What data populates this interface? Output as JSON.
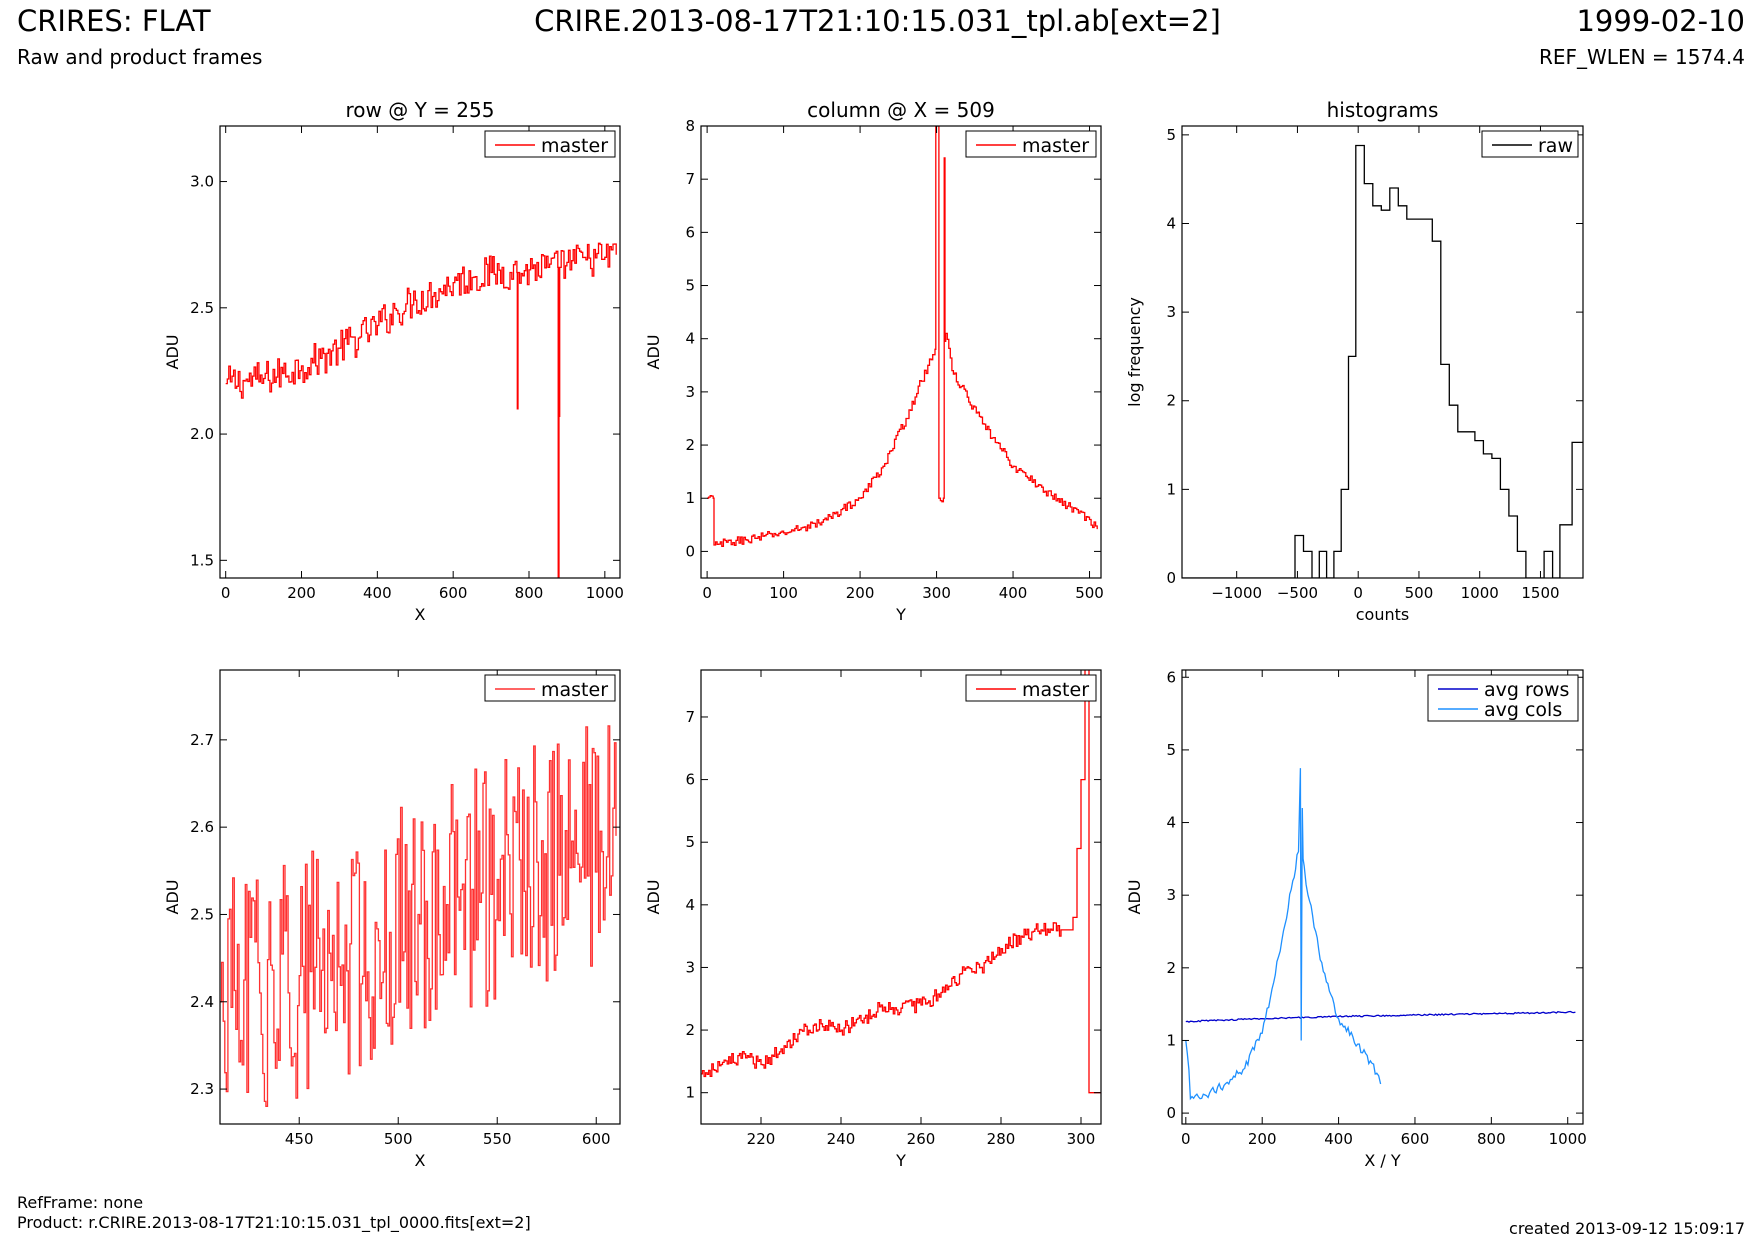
{
  "header": {
    "title_left": "CRIRES: FLAT",
    "title_center": "CRIRE.2013-08-17T21:10:15.031_tpl.ab[ext=2]",
    "title_right": "1999-02-10",
    "subtitle_left": "Raw and product frames",
    "subtitle_right": "REF_WLEN = 1574.4"
  },
  "footer": {
    "refframe": "RefFrame: none",
    "product": "Product: r.CRIRE.2013-08-17T21:10:15.031_tpl_0000.fits[ext=2]",
    "created": "created 2013-09-12 15:09:17"
  },
  "colors": {
    "master": "#ff0000",
    "raw": "#000000",
    "avg_rows": "#0000cc",
    "avg_cols": "#1e90ff"
  },
  "chart_data": [
    {
      "type": "line",
      "title": "row @ Y = 255",
      "xlabel": "X",
      "ylabel": "ADU",
      "xlim": [
        -15,
        1040
      ],
      "ylim": [
        1.43,
        3.22
      ],
      "xticks": [
        0,
        200,
        400,
        600,
        800,
        1000
      ],
      "yticks": [
        1.5,
        2.0,
        2.5,
        3.0
      ],
      "ytick_decimals": 1,
      "legend": "top-right",
      "series": [
        {
          "name": "master",
          "color": "#ff0000",
          "step": true,
          "x": [
            0,
            50,
            100,
            150,
            200,
            250,
            300,
            350,
            400,
            450,
            500,
            550,
            600,
            650,
            700,
            750,
            768,
            769,
            770,
            771,
            800,
            850,
            876,
            877,
            878,
            879,
            880,
            881,
            900,
            950,
            1000,
            1030
          ],
          "y": [
            2.2,
            2.21,
            2.22,
            2.24,
            2.27,
            2.3,
            2.34,
            2.38,
            2.43,
            2.49,
            2.53,
            2.56,
            2.6,
            2.62,
            2.64,
            2.64,
            2.64,
            2.1,
            2.1,
            2.64,
            2.65,
            2.66,
            2.66,
            1.43,
            1.43,
            2.66,
            2.07,
            2.66,
            2.68,
            2.69,
            2.7,
            2.71
          ],
          "noise": 0.07
        }
      ]
    },
    {
      "type": "line",
      "title": "column @ X = 509",
      "xlabel": "Y",
      "ylabel": "ADU",
      "xlim": [
        -8,
        515
      ],
      "ylim": [
        -0.5,
        8
      ],
      "xticks": [
        0,
        100,
        200,
        300,
        400,
        500
      ],
      "yticks": [
        0,
        1,
        2,
        3,
        4,
        5,
        6,
        7,
        8
      ],
      "ytick_decimals": 0,
      "legend": "top-right",
      "series": [
        {
          "name": "master",
          "color": "#ff0000",
          "step": true,
          "x": [
            0,
            8,
            9,
            50,
            100,
            150,
            200,
            230,
            260,
            280,
            295,
            298,
            299,
            302,
            303,
            309,
            310,
            311,
            312,
            320,
            340,
            360,
            400,
            450,
            500,
            510
          ],
          "y": [
            1.0,
            1.0,
            0.12,
            0.22,
            0.35,
            0.55,
            1.0,
            1.6,
            2.5,
            3.2,
            3.7,
            3.8,
            8.0,
            8.0,
            1.0,
            1.0,
            7.4,
            3.95,
            4.1,
            3.4,
            2.9,
            2.4,
            1.6,
            1.05,
            0.6,
            0.42
          ],
          "noise": 0.08
        }
      ]
    },
    {
      "type": "line",
      "title": "histograms",
      "xlabel": "counts",
      "ylabel": "log frequency",
      "xlim": [
        -1450,
        1850
      ],
      "ylim": [
        0,
        5.1
      ],
      "xticks": [
        -1000,
        -500,
        0,
        500,
        1000,
        1500
      ],
      "yticks": [
        0,
        1,
        2,
        3,
        4,
        5
      ],
      "ytick_decimals": 0,
      "legend": "top-right",
      "series": [
        {
          "name": "raw",
          "color": "#000000",
          "step": true,
          "x": [
            -1450,
            -580,
            -520,
            -450,
            -380,
            -320,
            -260,
            -200,
            -140,
            -80,
            -20,
            50,
            120,
            190,
            260,
            330,
            400,
            470,
            540,
            610,
            680,
            750,
            820,
            890,
            960,
            1030,
            1100,
            1170,
            1240,
            1310,
            1380,
            1450,
            1530,
            1600,
            1660,
            1760,
            1850
          ],
          "y": [
            0,
            0,
            0.48,
            0.3,
            0,
            0.3,
            0,
            0.3,
            1.0,
            2.5,
            4.88,
            4.45,
            4.2,
            4.15,
            4.4,
            4.2,
            4.05,
            4.05,
            4.05,
            3.8,
            2.41,
            1.95,
            1.65,
            1.65,
            1.55,
            1.4,
            1.35,
            1.0,
            0.7,
            0.3,
            0,
            0,
            0.3,
            0,
            0.6,
            1.53,
            1.53
          ]
        }
      ]
    },
    {
      "type": "line",
      "title": "",
      "xlabel": "X",
      "ylabel": "ADU",
      "xlim": [
        410,
        612
      ],
      "ylim": [
        2.26,
        2.78
      ],
      "xticks": [
        450,
        500,
        550,
        600
      ],
      "yticks": [
        2.3,
        2.4,
        2.5,
        2.6,
        2.7
      ],
      "ytick_decimals": 1,
      "legend": "top-right",
      "series": [
        {
          "name": "master",
          "color": "#ff3030",
          "step": true,
          "x": [
            410,
            430,
            450,
            470,
            490,
            510,
            530,
            550,
            570,
            590,
            610
          ],
          "y": [
            2.4,
            2.41,
            2.43,
            2.44,
            2.47,
            2.5,
            2.52,
            2.54,
            2.56,
            2.57,
            2.59
          ],
          "noise": 0.14
        }
      ]
    },
    {
      "type": "line",
      "title": "",
      "xlabel": "Y",
      "ylabel": "ADU",
      "xlim": [
        205,
        305
      ],
      "ylim": [
        0.5,
        7.75
      ],
      "xticks": [
        220,
        240,
        260,
        280,
        300
      ],
      "yticks": [
        1,
        2,
        3,
        4,
        5,
        6,
        7
      ],
      "ytick_decimals": 0,
      "legend": "top-right",
      "series": [
        {
          "name": "master",
          "color": "#ff0000",
          "step": true,
          "x": [
            205,
            210,
            215,
            220,
            225,
            230,
            235,
            240,
            245,
            250,
            255,
            260,
            265,
            270,
            275,
            280,
            285,
            290,
            295,
            298,
            299,
            300,
            301,
            302,
            305
          ],
          "y": [
            1.3,
            1.45,
            1.55,
            1.45,
            1.7,
            2.0,
            2.1,
            2.0,
            2.15,
            2.4,
            2.35,
            2.4,
            2.6,
            2.9,
            3.0,
            3.3,
            3.5,
            3.6,
            3.6,
            3.8,
            4.9,
            6.0,
            7.8,
            1.0,
            1.0
          ],
          "noise": 0.12
        }
      ]
    },
    {
      "type": "line",
      "title": "",
      "xlabel": "X / Y",
      "ylabel": "ADU",
      "xlim": [
        -10,
        1040
      ],
      "ylim": [
        -0.15,
        6.1
      ],
      "xticks": [
        0,
        200,
        400,
        600,
        800,
        1000
      ],
      "yticks": [
        0,
        1,
        2,
        3,
        4,
        5,
        6
      ],
      "ytick_decimals": 0,
      "legend": "top-right",
      "series": [
        {
          "name": "avg rows",
          "color": "#0000cc",
          "step": false,
          "x": [
            0,
            200,
            400,
            600,
            800,
            1020
          ],
          "y": [
            1.26,
            1.3,
            1.33,
            1.35,
            1.37,
            1.39
          ],
          "noise": 0.01
        },
        {
          "name": "avg cols",
          "color": "#1e90ff",
          "step": false,
          "x": [
            0,
            8,
            12,
            50,
            100,
            150,
            200,
            230,
            260,
            280,
            295,
            300,
            302,
            305,
            307,
            310,
            320,
            340,
            360,
            400,
            450,
            500,
            510
          ],
          "y": [
            1.0,
            0.6,
            0.2,
            0.25,
            0.38,
            0.6,
            1.1,
            1.8,
            2.6,
            3.2,
            3.6,
            4.75,
            1.0,
            4.2,
            3.5,
            3.4,
            3.0,
            2.5,
            1.95,
            1.3,
            0.95,
            0.55,
            0.4
          ],
          "noise": 0.06
        }
      ]
    }
  ]
}
